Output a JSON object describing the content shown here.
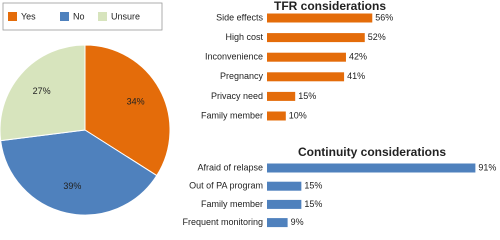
{
  "chart_data": [
    {
      "type": "pie",
      "categories": [
        "Yes",
        "No",
        "Unsure"
      ],
      "values": [
        34,
        39,
        27
      ],
      "value_labels": [
        "34%",
        "39%",
        "27%"
      ],
      "colors": [
        "#e46c0a",
        "#4f81bd",
        "#d7e4bd"
      ]
    },
    {
      "type": "bar",
      "title": "TFR considerations",
      "categories": [
        "Side effects",
        "High cost",
        "Inconvenience",
        "Pregnancy",
        "Privacy need",
        "Family member"
      ],
      "values": [
        56,
        52,
        42,
        41,
        15,
        10
      ],
      "value_labels": [
        "56%",
        "52%",
        "42%",
        "41%",
        "15%",
        "10%"
      ],
      "color": "#e46c0a",
      "xlim": [
        0,
        100
      ]
    },
    {
      "type": "bar",
      "title": "Continuity considerations",
      "categories": [
        "Afraid of relapse",
        "Out of PA program",
        "Family member",
        "Frequent monitoring"
      ],
      "values": [
        91,
        15,
        15,
        9
      ],
      "value_labels": [
        "91%",
        "15%",
        "15%",
        "9%"
      ],
      "color": "#4f81bd",
      "xlim": [
        0,
        100
      ]
    }
  ]
}
